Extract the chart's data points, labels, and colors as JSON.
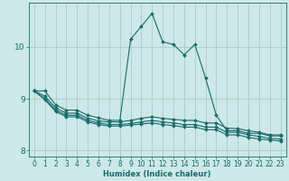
{
  "xlabel": "Humidex (Indice chaleur)",
  "background_color": "#cce8e8",
  "grid_color": "#aacccc",
  "line_color": "#1a6b6b",
  "x_values": [
    0,
    1,
    2,
    3,
    4,
    5,
    6,
    7,
    8,
    9,
    10,
    11,
    12,
    13,
    14,
    15,
    16,
    17,
    18,
    19,
    20,
    21,
    22,
    23
  ],
  "line1": [
    9.15,
    9.15,
    8.88,
    8.78,
    8.78,
    8.68,
    8.63,
    8.58,
    8.58,
    10.15,
    10.4,
    10.65,
    10.1,
    10.05,
    9.85,
    10.05,
    9.4,
    8.68,
    8.38,
    8.38,
    8.33,
    8.33,
    8.28,
    8.28
  ],
  "line2": [
    9.15,
    9.05,
    8.82,
    8.72,
    8.72,
    8.62,
    8.57,
    8.55,
    8.55,
    8.58,
    8.62,
    8.65,
    8.62,
    8.6,
    8.58,
    8.58,
    8.53,
    8.53,
    8.43,
    8.42,
    8.38,
    8.35,
    8.3,
    8.3
  ],
  "line3": [
    9.15,
    9.0,
    8.78,
    8.68,
    8.68,
    8.58,
    8.53,
    8.5,
    8.5,
    8.52,
    8.55,
    8.58,
    8.55,
    8.53,
    8.5,
    8.5,
    8.45,
    8.45,
    8.35,
    8.35,
    8.3,
    8.27,
    8.23,
    8.22
  ],
  "line4": [
    9.15,
    8.98,
    8.75,
    8.65,
    8.65,
    8.55,
    8.5,
    8.47,
    8.47,
    8.49,
    8.51,
    8.53,
    8.5,
    8.48,
    8.45,
    8.45,
    8.4,
    8.4,
    8.3,
    8.3,
    8.25,
    8.22,
    8.2,
    8.18
  ],
  "xlim": [
    -0.5,
    23.5
  ],
  "ylim": [
    7.88,
    10.85
  ],
  "yticks": [
    8,
    9,
    10
  ],
  "xticks": [
    0,
    1,
    2,
    3,
    4,
    5,
    6,
    7,
    8,
    9,
    10,
    11,
    12,
    13,
    14,
    15,
    16,
    17,
    18,
    19,
    20,
    21,
    22,
    23
  ],
  "markersize": 2.0,
  "linewidth": 0.8,
  "tick_fontsize": 5.5,
  "xlabel_fontsize": 6.0
}
